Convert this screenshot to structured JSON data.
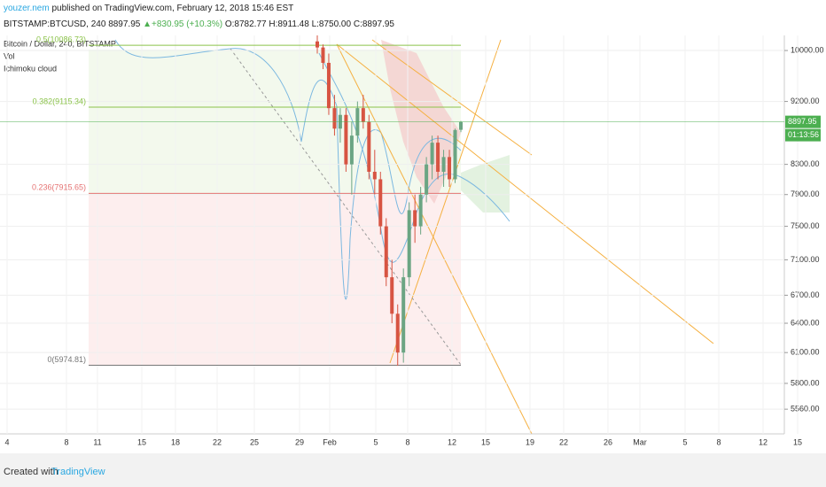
{
  "header": {
    "author": "youzer.nem",
    "published": "published on TradingView.com, February 12, 2018 15:46 EST"
  },
  "symbol_line": {
    "symbol": "BITSTAMP:BTCUSD, 240",
    "price": "8897.95",
    "change": "▲+830.95 (+10.3%)",
    "open": "O:8782.77",
    "high": "H:8911.48",
    "low": "L:8750.00",
    "close": "C:8897.95"
  },
  "chart_data": {
    "type": "candlestick",
    "legend": [
      "Bitcoin / Dollar, 240, BITSTAMP",
      "Vol",
      "Ichimoku cloud"
    ],
    "up_color": "#6ba583",
    "down_color": "#d75442",
    "open": [
      10150,
      10050,
      9800,
      9100,
      8800,
      9000,
      8300,
      8700,
      9100,
      8900,
      8200,
      8100,
      7500,
      6900,
      6500,
      6100,
      6900,
      7700,
      7500,
      7900,
      8300,
      8600,
      8200,
      8400,
      8100,
      8782.77
    ],
    "high": [
      10250,
      10100,
      9950,
      9300,
      9100,
      9100,
      8900,
      9200,
      9300,
      9000,
      8500,
      8200,
      7600,
      7100,
      6600,
      7000,
      7800,
      7900,
      8000,
      8400,
      8700,
      8700,
      8500,
      8500,
      8800,
      8911.48
    ],
    "low": [
      9950,
      9700,
      9000,
      8700,
      8600,
      8200,
      7900,
      8600,
      8800,
      8100,
      7900,
      7400,
      6800,
      6400,
      5970,
      6000,
      6800,
      7300,
      7400,
      7800,
      8100,
      8100,
      8000,
      8000,
      8050,
      8750
    ],
    "close": [
      10050,
      9800,
      9100,
      8800,
      9000,
      8300,
      8700,
      9100,
      8900,
      8200,
      8100,
      7500,
      6900,
      6500,
      6100,
      6900,
      7700,
      7500,
      7900,
      8300,
      8600,
      8200,
      8400,
      8100,
      8780,
      8897.95
    ],
    "log_scale": true,
    "ylim": [
      5340,
      10250
    ],
    "yticks": [
      {
        "value": 10000,
        "label": "10000.00"
      },
      {
        "value": 9200,
        "label": "9200.00"
      },
      {
        "value": 8300,
        "label": "8300.00"
      },
      {
        "value": 7900,
        "label": "7900.00"
      },
      {
        "value": 7500,
        "label": "7500.00"
      },
      {
        "value": 7100,
        "label": "7100.00"
      },
      {
        "value": 6700,
        "label": "6700.00"
      },
      {
        "value": 6400,
        "label": "6400.00"
      },
      {
        "value": 6100,
        "label": "6100.00"
      },
      {
        "value": 5800,
        "label": "5800.00"
      },
      {
        "value": 5560,
        "label": "5560.00"
      }
    ],
    "x_labels": [
      "4",
      "8",
      "11",
      "15",
      "18",
      "22",
      "25",
      "29",
      "Feb",
      "5",
      "8",
      "12",
      "15",
      "19",
      "22",
      "26",
      "Mar",
      "5",
      "8",
      "12",
      "15"
    ],
    "fib_levels": [
      {
        "value": 10086.73,
        "label": "0.5(10086.73)",
        "color": "#8bc34a"
      },
      {
        "value": 9115.34,
        "label": "0.382(9115.34)",
        "color": "#8bc34a"
      },
      {
        "value": 7915.65,
        "label": "0.236(7915.65)",
        "color": "#e57373"
      },
      {
        "value": 5974.81,
        "label": "0(5974.81)",
        "color": "#777777"
      }
    ],
    "last_price": {
      "value": 8897.95,
      "label": "8897.95"
    },
    "countdown": "01:13:56"
  },
  "footer": {
    "created": "Created with",
    "brand": "TradingView"
  }
}
